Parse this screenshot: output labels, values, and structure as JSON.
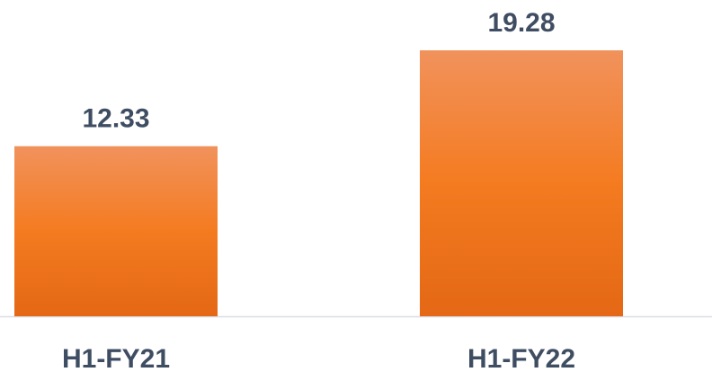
{
  "chart_data": {
    "type": "bar",
    "categories": [
      "H1-FY21",
      "H1-FY22"
    ],
    "values": [
      12.33,
      19.28
    ],
    "color": "#f47b20"
  }
}
